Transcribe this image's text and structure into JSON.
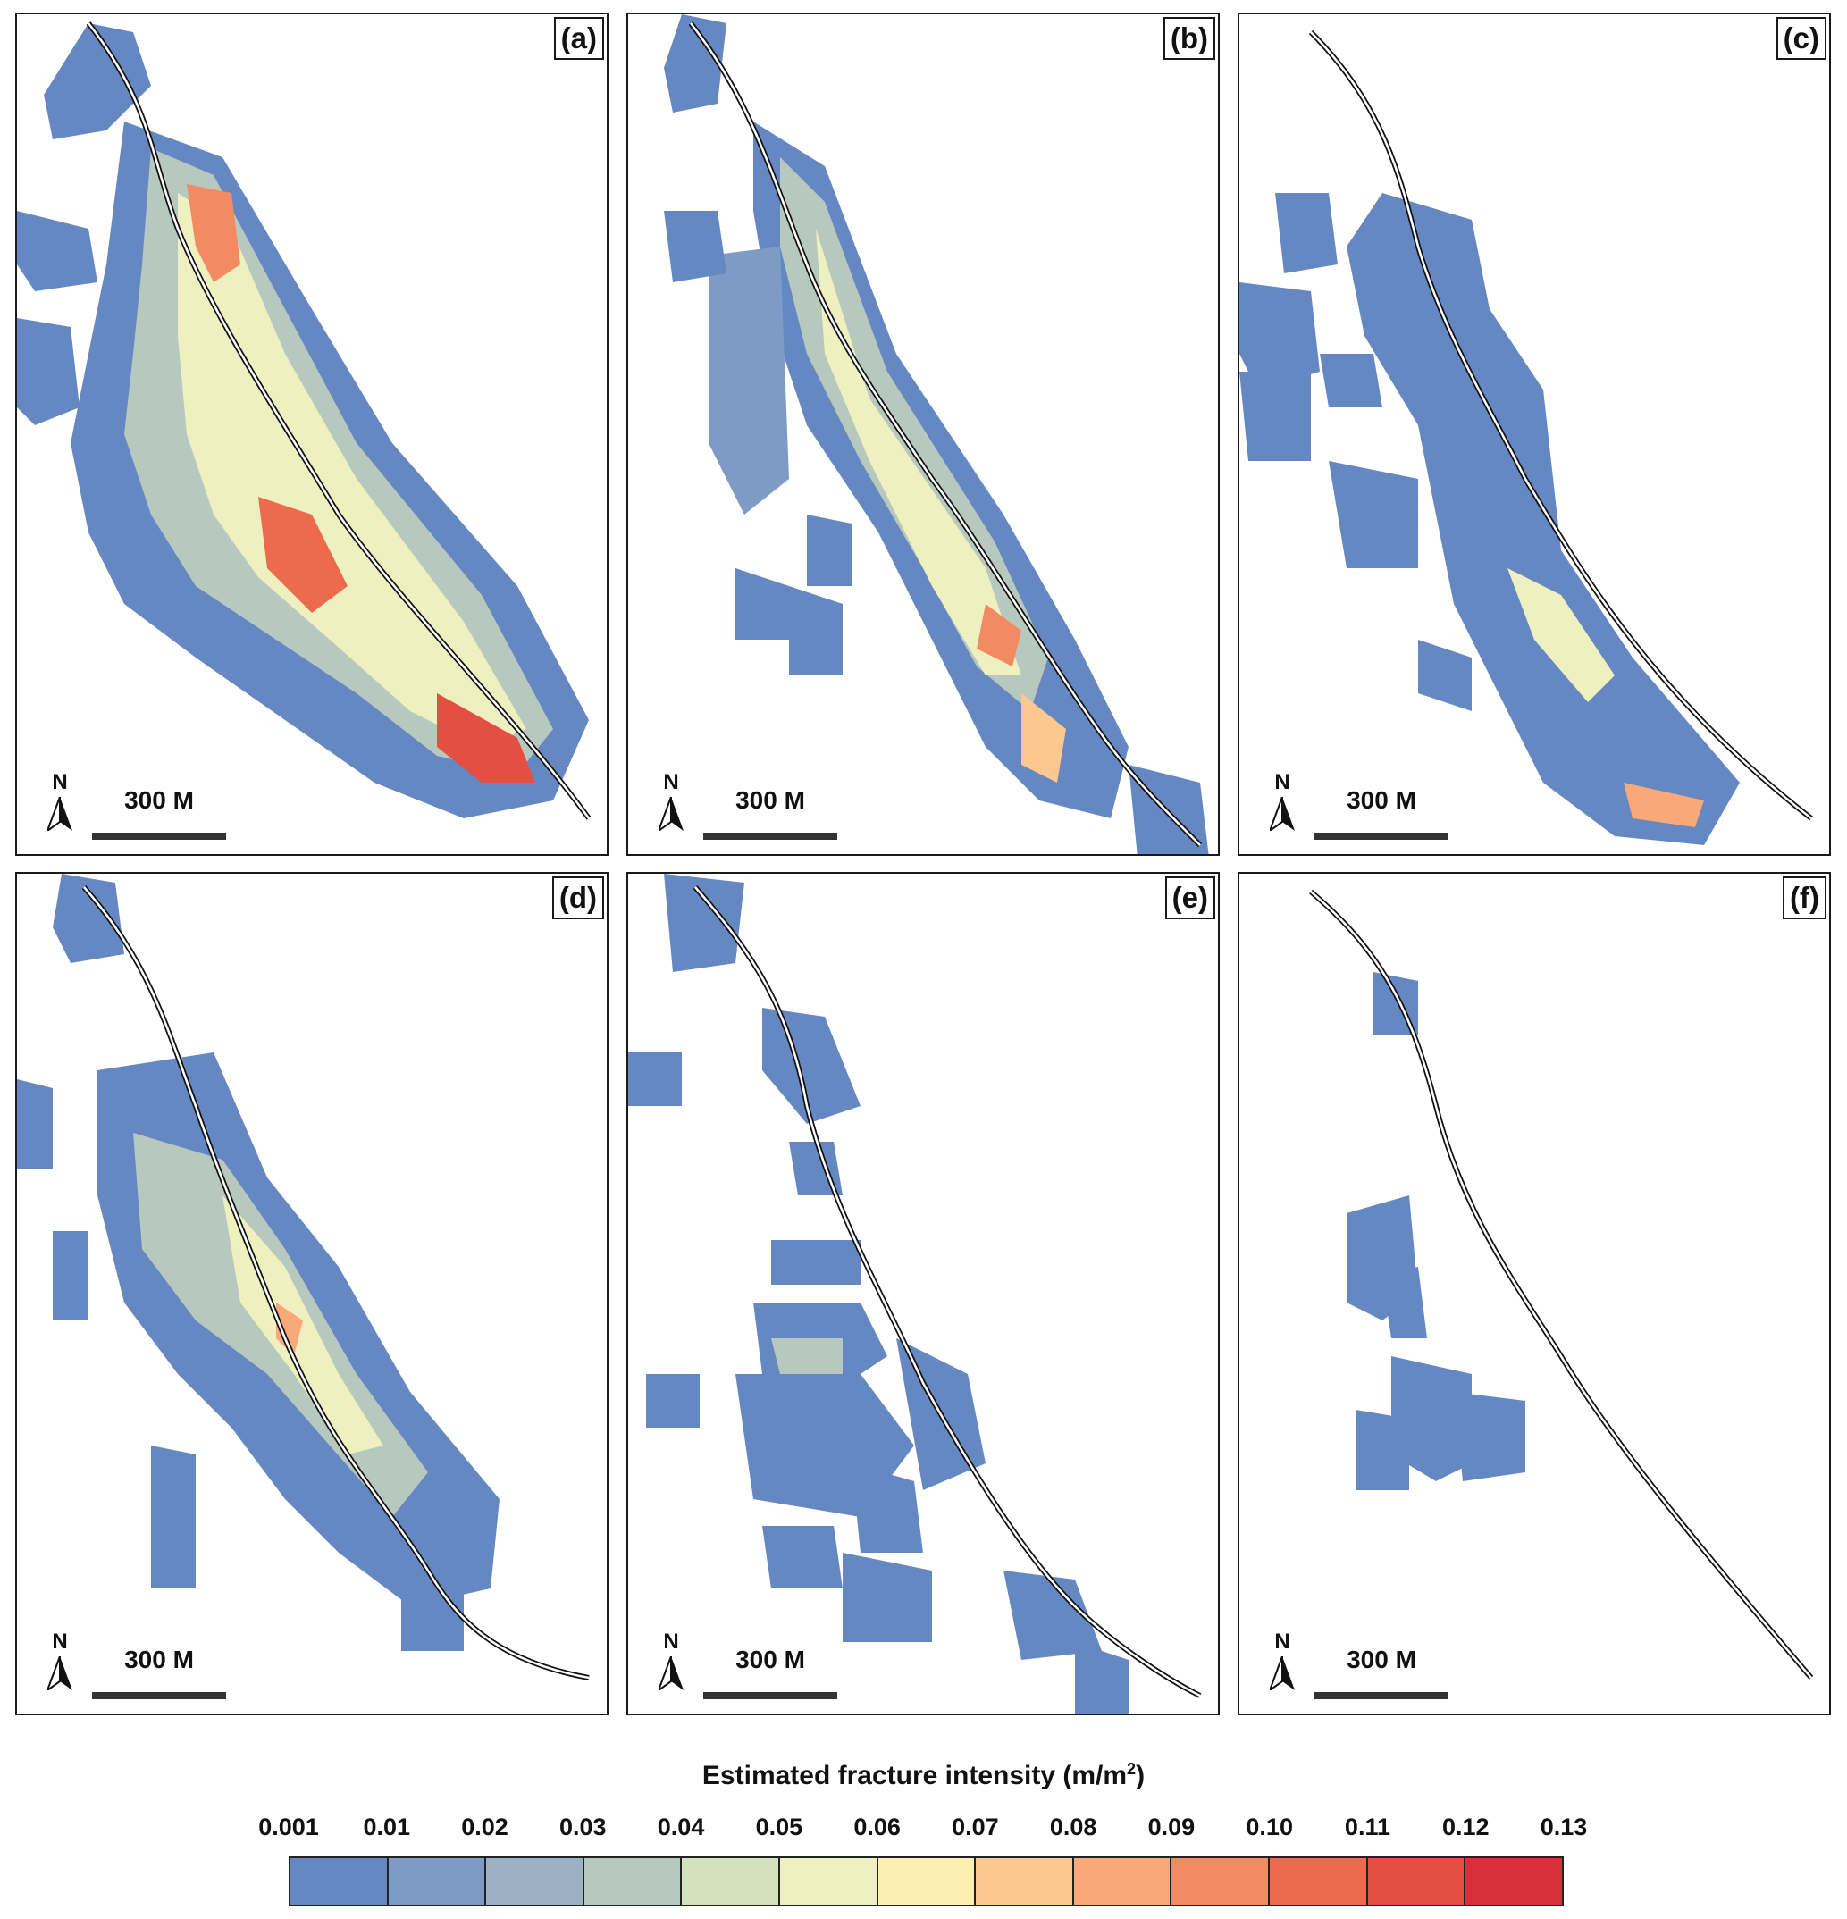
{
  "panels": [
    {
      "label": "(a)",
      "north": "N",
      "scale": "300 M"
    },
    {
      "label": "(b)",
      "north": "N",
      "scale": "300 M"
    },
    {
      "label": "(c)",
      "north": "N",
      "scale": "300 M"
    },
    {
      "label": "(d)",
      "north": "N",
      "scale": "300 M"
    },
    {
      "label": "(e)",
      "north": "N",
      "scale": "300 M"
    },
    {
      "label": "(f)",
      "north": "N",
      "scale": "300 M"
    }
  ],
  "legend": {
    "title": "Estimated fracture intensity (m/m",
    "title_sup": "2",
    "title_end": ")",
    "ticks": [
      "0.001",
      "0.01",
      "0.02",
      "0.03",
      "0.04",
      "0.05",
      "0.06",
      "0.07",
      "0.08",
      "0.09",
      "0.10",
      "0.11",
      "0.12",
      "0.13"
    ],
    "colors": [
      "#6688c2",
      "#7d9bc4",
      "#9cb1c3",
      "#b7c9be",
      "#d4e1bd",
      "#eef0c0",
      "#fdeeb4",
      "#fcc890",
      "#f9a878",
      "#f48a62",
      "#ec6a4e",
      "#e34f43",
      "#d8303b"
    ]
  }
}
